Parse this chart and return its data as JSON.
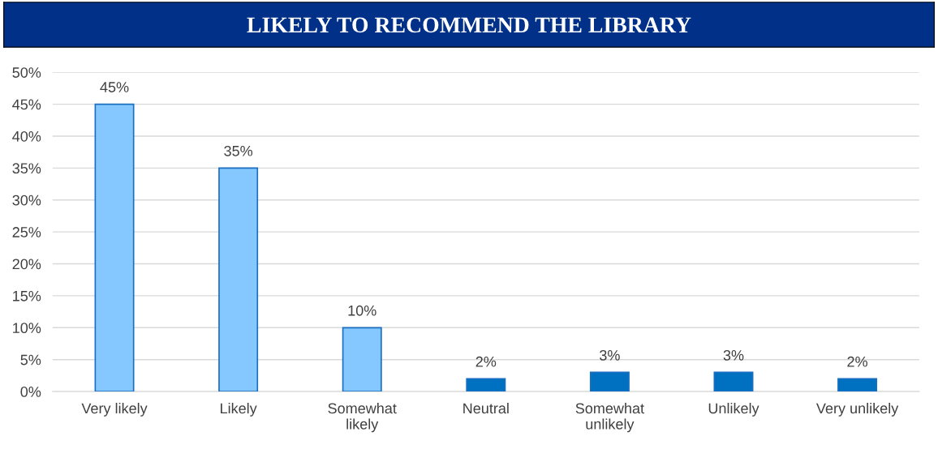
{
  "chart_data": {
    "type": "bar",
    "title": "LIKELY TO RECOMMEND THE LIBRARY",
    "categories": [
      "Very likely",
      "Likely",
      "Somewhat likely",
      "Neutral",
      "Somewhat unlikely",
      "Unlikely",
      "Very unlikely"
    ],
    "values": [
      45,
      35,
      10,
      2,
      3,
      3,
      2
    ],
    "colors": [
      "#85c8ff",
      "#85c8ff",
      "#85c8ff",
      "#0070c0",
      "#0070c0",
      "#0070c0",
      "#0070c0"
    ],
    "value_labels": [
      "45%",
      "35%",
      "10%",
      "2%",
      "3%",
      "3%",
      "2%"
    ],
    "ylim": [
      0,
      50
    ],
    "yticks": [
      {
        "value": 0,
        "label": "0%"
      },
      {
        "value": 5,
        "label": "5%"
      },
      {
        "value": 10,
        "label": "10%"
      },
      {
        "value": 15,
        "label": "15%"
      },
      {
        "value": 20,
        "label": "20%"
      },
      {
        "value": 25,
        "label": "25%"
      },
      {
        "value": 30,
        "label": "30%"
      },
      {
        "value": 35,
        "label": "35%"
      },
      {
        "value": 40,
        "label": "40%"
      },
      {
        "value": 45,
        "label": "45%"
      },
      {
        "value": 50,
        "label": "50%"
      }
    ],
    "grid": "y",
    "legend": false
  }
}
